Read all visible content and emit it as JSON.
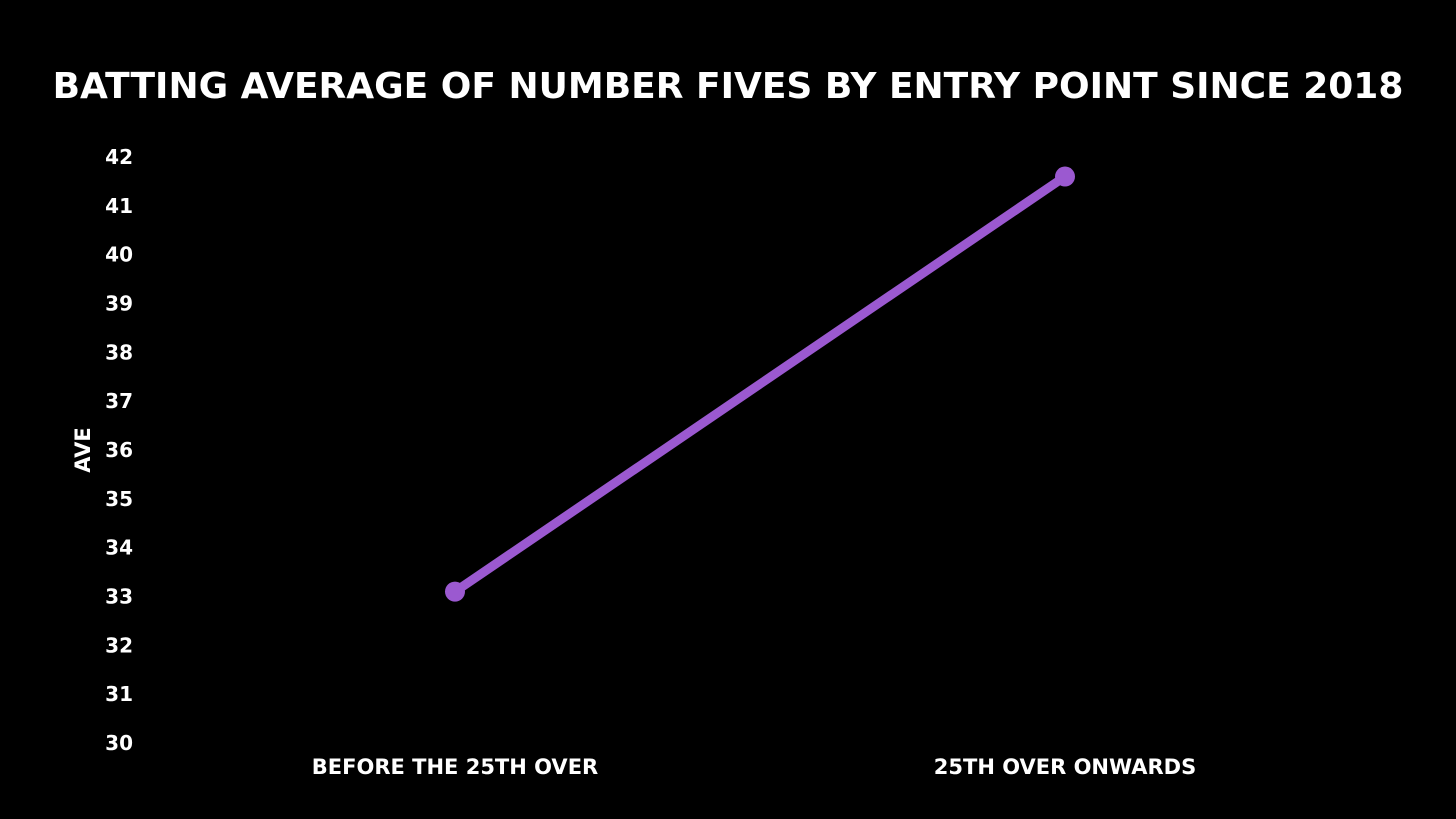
{
  "chart_data": {
    "type": "line",
    "title": "BATTING AVERAGE OF NUMBER FIVES BY ENTRY POINT SINCE 2018",
    "xlabel": "",
    "ylabel": "AVE",
    "categories": [
      "BEFORE THE 25TH OVER",
      "25TH OVER ONWARDS"
    ],
    "series": [
      {
        "values": [
          33.1,
          41.6
        ]
      }
    ],
    "ylim": [
      30,
      42
    ],
    "yticks": [
      "30",
      "31",
      "32",
      "33",
      "34",
      "35",
      "36",
      "37",
      "38",
      "39",
      "40",
      "41",
      "42"
    ],
    "grid": false,
    "legend": "none",
    "colors": {
      "background": "#000000",
      "line": "#9b59d0",
      "text": "#ffffff"
    }
  }
}
